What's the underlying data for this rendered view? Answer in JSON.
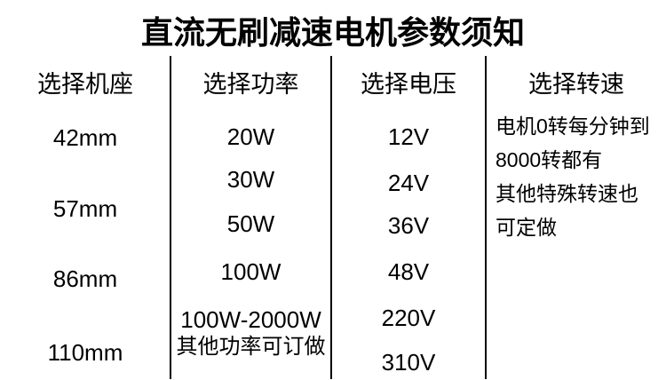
{
  "title": "直流无刷减速电机参数须知",
  "columns": [
    {
      "header": "选择机座",
      "items": [
        "42mm",
        "57mm",
        "86mm",
        "110mm"
      ]
    },
    {
      "header": "选择功率",
      "items": [
        "20W",
        "30W",
        "50W",
        "100W",
        "100W-2000W",
        "其他功率可订做"
      ]
    },
    {
      "header": "选择电压",
      "items": [
        "12V",
        "24V",
        "36V",
        "48V",
        "220V",
        "310V"
      ]
    },
    {
      "header": "选择转速",
      "lines": [
        "电机0转每分钟到",
        "8000转都有",
        "其他特殊转速也",
        "可定做"
      ]
    }
  ],
  "colors": {
    "background": "#ffffff",
    "text": "#000000",
    "divider": "#000000"
  }
}
